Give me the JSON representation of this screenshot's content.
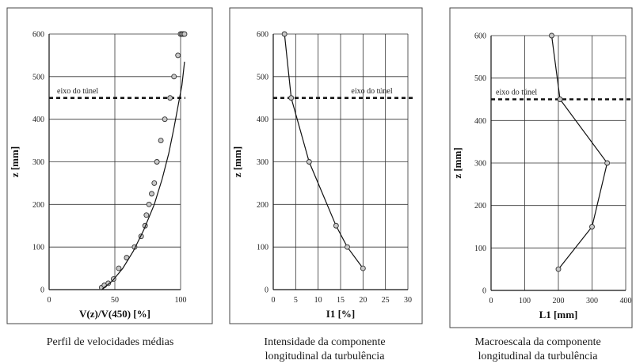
{
  "chart_data": [
    {
      "type": "scatter",
      "title": "",
      "caption": "Perfil de velocidades médias",
      "xlabel": "V(z)/V(450) [%]",
      "ylabel": "z [mm]",
      "xlim": [
        0,
        100
      ],
      "ylim": [
        0,
        600
      ],
      "xticks": [
        0,
        50,
        100
      ],
      "yticks": [
        0,
        100,
        200,
        300,
        400,
        500,
        600
      ],
      "grid": true,
      "annotation": "eixo do túnel",
      "reference_line_y": 450,
      "series": [
        {
          "style": "markers",
          "x": [
            40,
            42,
            45,
            49,
            53,
            59,
            65,
            70,
            73,
            74,
            76,
            78,
            80,
            82,
            85,
            88,
            92,
            95,
            98,
            100,
            101,
            102,
            103
          ],
          "y": [
            5,
            10,
            15,
            25,
            50,
            75,
            100,
            125,
            150,
            175,
            200,
            225,
            250,
            300,
            350,
            400,
            450,
            500,
            550,
            600,
            600,
            600,
            600
          ]
        },
        {
          "style": "line",
          "x": [
            40,
            48,
            56,
            64,
            72,
            80,
            86,
            91,
            95,
            98,
            101,
            103
          ],
          "y": [
            0,
            20,
            50,
            90,
            140,
            200,
            260,
            320,
            380,
            430,
            480,
            535
          ]
        }
      ]
    },
    {
      "type": "line",
      "title": "",
      "caption": [
        "Intensidade da componente",
        "longitudinal da turbulência"
      ],
      "xlabel": "I1 [%]",
      "ylabel": "z [mm]",
      "xlim": [
        0,
        30
      ],
      "ylim": [
        0,
        600
      ],
      "xticks": [
        0,
        5,
        10,
        15,
        20,
        25,
        30
      ],
      "yticks": [
        0,
        100,
        200,
        300,
        400,
        500,
        600
      ],
      "grid": true,
      "annotation": "eixo do túnel",
      "reference_line_y": 450,
      "series": [
        {
          "style": "line+markers",
          "x": [
            20,
            16.5,
            14,
            8,
            4,
            2.5
          ],
          "y": [
            50,
            100,
            150,
            300,
            450,
            600
          ]
        }
      ]
    },
    {
      "type": "line",
      "title": "",
      "caption": [
        "Macroescala da componente",
        "longitudinal da turbulência"
      ],
      "xlabel": "L1 [mm]",
      "ylabel": "z [mm]",
      "xlim": [
        0,
        400
      ],
      "ylim": [
        0,
        600
      ],
      "xticks": [
        0,
        100,
        200,
        300,
        400
      ],
      "yticks": [
        0,
        100,
        200,
        300,
        400,
        500,
        600
      ],
      "grid": true,
      "annotation": "eixo do túnel",
      "reference_line_y": 450,
      "series": [
        {
          "style": "line+markers",
          "x": [
            200,
            300,
            345,
            205,
            180
          ],
          "y": [
            50,
            150,
            300,
            450,
            600
          ]
        }
      ]
    }
  ]
}
